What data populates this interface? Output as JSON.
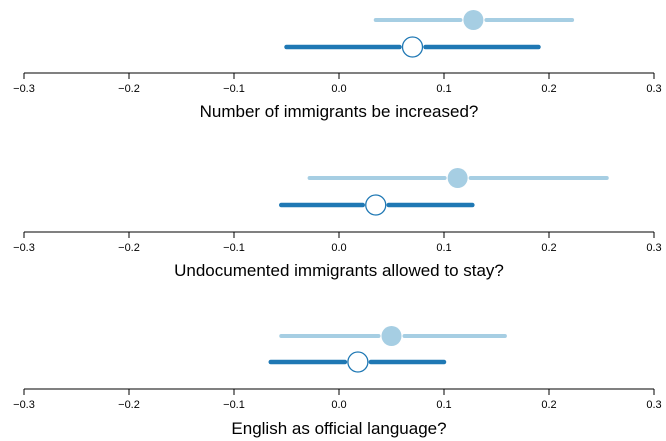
{
  "chart_data": {
    "type": "dot-interval",
    "xlim": [
      -0.3,
      0.3
    ],
    "tick_labels": [
      "−0.3",
      "−0.2",
      "−0.1",
      "0.0",
      "0.1",
      "0.2",
      "0.3"
    ],
    "tick_values": [
      -0.3,
      -0.2,
      -0.1,
      0.0,
      0.1,
      0.2,
      0.3
    ],
    "grid": false,
    "legend": "none",
    "colors": {
      "light": "#a6cee3",
      "dark": "#1f78b4"
    },
    "panels": [
      {
        "title": "Number of immigrants be increased?",
        "series": [
          {
            "style": "light-filled",
            "estimate": 0.128,
            "lower": 0.035,
            "upper": 0.222
          },
          {
            "style": "dark-open",
            "estimate": 0.07,
            "lower": -0.05,
            "upper": 0.19
          }
        ]
      },
      {
        "title": "Undocumented immigrants allowed to stay?",
        "series": [
          {
            "style": "light-filled",
            "estimate": 0.113,
            "lower": -0.028,
            "upper": 0.255
          },
          {
            "style": "dark-open",
            "estimate": 0.035,
            "lower": -0.055,
            "upper": 0.127
          }
        ]
      },
      {
        "title": "English as official language?",
        "series": [
          {
            "style": "light-filled",
            "estimate": 0.05,
            "lower": -0.055,
            "upper": 0.158
          },
          {
            "style": "dark-open",
            "estimate": 0.018,
            "lower": -0.065,
            "upper": 0.1
          }
        ]
      }
    ]
  }
}
